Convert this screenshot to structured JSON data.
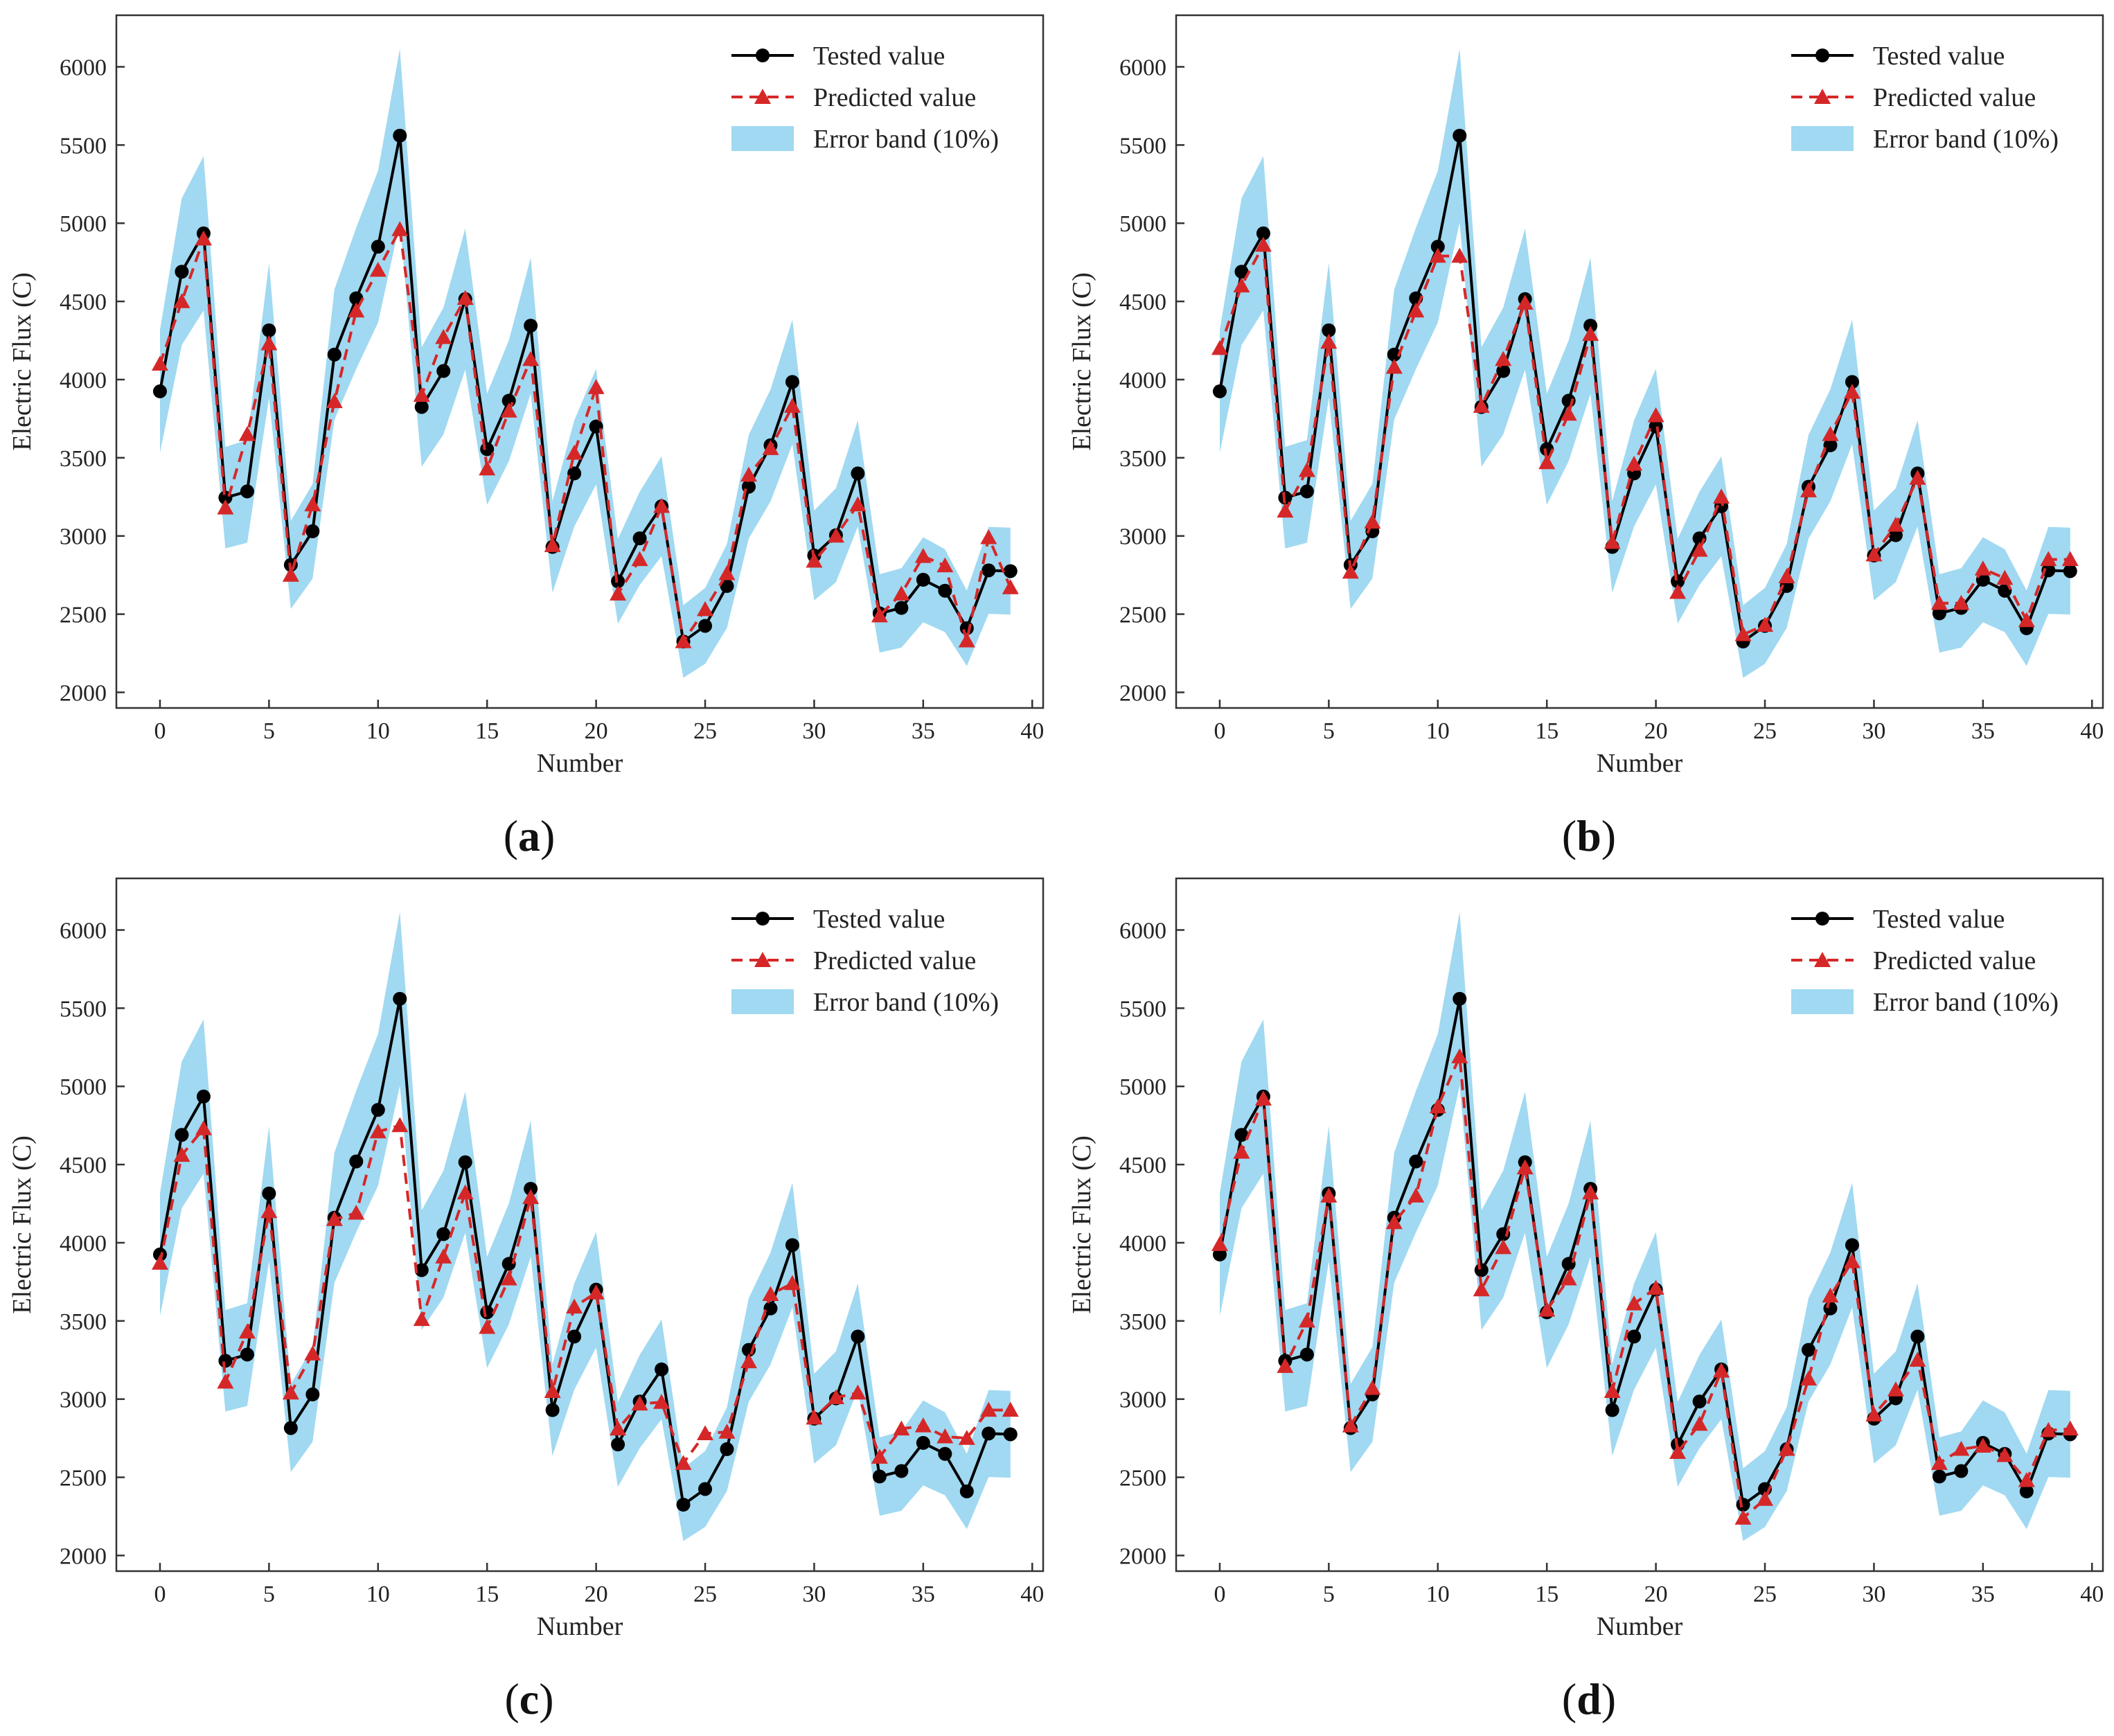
{
  "colors": {
    "tested": "#000000",
    "predicted": "#d62728",
    "band": "#8fd2ef",
    "axis": "#333333"
  },
  "chart_data": [
    {
      "type": "line",
      "panel": {
        "open": "(",
        "letter": "a",
        "close": ")"
      },
      "xlabel": "Number",
      "ylabel": "Electric Flux (C)",
      "xlim": [
        -2,
        40.5
      ],
      "ylim": [
        1900,
        6330
      ],
      "xticks": [
        0,
        5,
        10,
        15,
        20,
        25,
        30,
        35,
        40
      ],
      "yticks": [
        2000,
        2500,
        3000,
        3500,
        4000,
        4500,
        5000,
        5500,
        6000
      ],
      "legend": {
        "position": "top-right",
        "labels": [
          "Tested value",
          "Predicted value",
          "Error band (10%)"
        ]
      },
      "series": [
        {
          "name": "Tested value",
          "values": [
            3925,
            4690,
            4935,
            3245,
            3285,
            4315,
            2815,
            3030,
            4160,
            4520,
            4850,
            5560,
            3825,
            4055,
            4515,
            3555,
            3865,
            4345,
            2930,
            3400,
            3700,
            2710,
            2985,
            3190,
            2325,
            2425,
            2680,
            3315,
            3580,
            3985,
            2875,
            3005,
            3400,
            2505,
            2540,
            2720,
            2650,
            2410,
            2780,
            2775
          ]
        },
        {
          "name": "Predicted value",
          "values": [
            4100,
            4500,
            4900,
            3180,
            3650,
            4230,
            2750,
            3200,
            3860,
            4440,
            4700,
            4960,
            3900,
            4270,
            4520,
            3430,
            3800,
            4130,
            2940,
            3530,
            3950,
            2630,
            2850,
            3190,
            2325,
            2530,
            2760,
            3390,
            3560,
            3830,
            2840,
            3000,
            3200,
            2490,
            2630,
            2870,
            2810,
            2330,
            2990,
            2670
          ]
        }
      ]
    },
    {
      "type": "line",
      "panel": {
        "open": "(",
        "letter": "b",
        "close": ")"
      },
      "xlabel": "Number",
      "ylabel": "Electric Flux (C)",
      "xlim": [
        -2,
        40.5
      ],
      "ylim": [
        1900,
        6330
      ],
      "xticks": [
        0,
        5,
        10,
        15,
        20,
        25,
        30,
        35,
        40
      ],
      "yticks": [
        2000,
        2500,
        3000,
        3500,
        4000,
        4500,
        5000,
        5500,
        6000
      ],
      "legend": {
        "position": "top-right",
        "labels": [
          "Tested value",
          "Predicted value",
          "Error band (10%)"
        ]
      },
      "series": [
        {
          "name": "Tested value",
          "values": [
            3925,
            4690,
            4935,
            3245,
            3285,
            4315,
            2815,
            3030,
            4160,
            4520,
            4850,
            5560,
            3825,
            4055,
            4515,
            3555,
            3865,
            4345,
            2930,
            3400,
            3700,
            2710,
            2985,
            3190,
            2325,
            2425,
            2680,
            3315,
            3580,
            3985,
            2875,
            3005,
            3400,
            2505,
            2540,
            2720,
            2650,
            2410,
            2780,
            2775
          ]
        },
        {
          "name": "Predicted value",
          "values": [
            4200,
            4600,
            4860,
            3160,
            3420,
            4240,
            2770,
            3090,
            4080,
            4440,
            4790,
            4790,
            3830,
            4130,
            4490,
            3470,
            3780,
            4290,
            2960,
            3460,
            3770,
            2640,
            2910,
            3250,
            2370,
            2430,
            2740,
            3290,
            3650,
            3920,
            2880,
            3070,
            3370,
            2570,
            2570,
            2790,
            2730,
            2460,
            2850,
            2850
          ]
        }
      ]
    },
    {
      "type": "line",
      "panel": {
        "open": "(",
        "letter": "c",
        "close": ")"
      },
      "xlabel": "Number",
      "ylabel": "Electric Flux (C)",
      "xlim": [
        -2,
        40.5
      ],
      "ylim": [
        1900,
        6330
      ],
      "xticks": [
        0,
        5,
        10,
        15,
        20,
        25,
        30,
        35,
        40
      ],
      "yticks": [
        2000,
        2500,
        3000,
        3500,
        4000,
        4500,
        5000,
        5500,
        6000
      ],
      "legend": {
        "position": "top-right",
        "labels": [
          "Tested value",
          "Predicted value",
          "Error band (10%)"
        ]
      },
      "series": [
        {
          "name": "Tested value",
          "values": [
            3925,
            4690,
            4935,
            3245,
            3285,
            4315,
            2815,
            3030,
            4160,
            4520,
            4850,
            5560,
            3825,
            4055,
            4515,
            3555,
            3865,
            4345,
            2930,
            3400,
            3700,
            2710,
            2985,
            3190,
            2325,
            2425,
            2680,
            3315,
            3580,
            3985,
            2875,
            3005,
            3400,
            2505,
            2540,
            2720,
            2650,
            2410,
            2780,
            2775
          ]
        },
        {
          "name": "Predicted value",
          "values": [
            3870,
            4560,
            4730,
            3110,
            3430,
            4200,
            3040,
            3290,
            4150,
            4190,
            4710,
            4750,
            3510,
            3910,
            4320,
            3460,
            3770,
            4290,
            3050,
            3590,
            3680,
            2810,
            2970,
            2980,
            2590,
            2780,
            2790,
            3240,
            3670,
            3740,
            2880,
            3010,
            3040,
            2630,
            2810,
            2830,
            2760,
            2750,
            2930,
            2930
          ]
        }
      ]
    },
    {
      "type": "line",
      "panel": {
        "open": "(",
        "letter": "d",
        "close": ")"
      },
      "xlabel": "Number",
      "ylabel": "Electric Flux (C)",
      "xlim": [
        -2,
        40.5
      ],
      "ylim": [
        1900,
        6330
      ],
      "xticks": [
        0,
        5,
        10,
        15,
        20,
        25,
        30,
        35,
        40
      ],
      "yticks": [
        2000,
        2500,
        3000,
        3500,
        4000,
        4500,
        5000,
        5500,
        6000
      ],
      "legend": {
        "position": "top-right",
        "labels": [
          "Tested value",
          "Predicted value",
          "Error band (10%)"
        ]
      },
      "series": [
        {
          "name": "Tested value",
          "values": [
            3925,
            4690,
            4935,
            3245,
            3285,
            4315,
            2815,
            3030,
            4160,
            4520,
            4850,
            5560,
            3825,
            4055,
            4515,
            3555,
            3865,
            4345,
            2930,
            3400,
            3700,
            2710,
            2985,
            3190,
            2325,
            2425,
            2680,
            3315,
            3580,
            3985,
            2875,
            3005,
            3400,
            2505,
            2540,
            2720,
            2650,
            2410,
            2780,
            2775
          ]
        },
        {
          "name": "Predicted value",
          "values": [
            3990,
            4580,
            4920,
            3210,
            3500,
            4300,
            2830,
            3070,
            4130,
            4300,
            4870,
            5190,
            3700,
            3970,
            4480,
            3570,
            3770,
            4320,
            3050,
            3610,
            3710,
            2660,
            2840,
            3180,
            2240,
            2360,
            2680,
            3130,
            3660,
            3880,
            2900,
            3060,
            3250,
            2590,
            2680,
            2700,
            2640,
            2480,
            2800,
            2810
          ]
        }
      ]
    }
  ]
}
